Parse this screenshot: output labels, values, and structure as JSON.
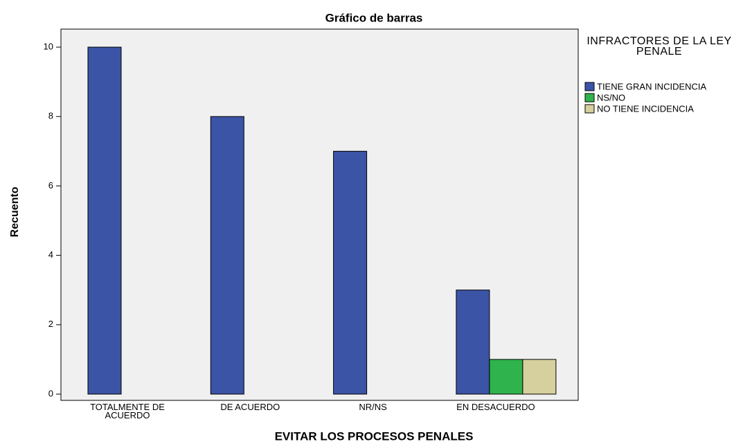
{
  "chart_data": {
    "type": "bar",
    "title": "Gráfico de barras",
    "x_label": "EVITAR LOS PROCESOS PENALES",
    "y_label": "Recuento",
    "legend_title": "INFRACTORES DE LA LEY PENALE",
    "legend_position": "right",
    "categories": [
      "TOTALMENTE DE ACUERDO",
      "DE ACUERDO",
      "NR/NS",
      "EN DESACUERDO"
    ],
    "series": [
      {
        "name": "TIENE GRAN INCIDENCIA",
        "color": "#3b54a6",
        "values": [
          10,
          8,
          7,
          3
        ]
      },
      {
        "name": "NS/NO",
        "color": "#2fb34c",
        "values": [
          null,
          null,
          null,
          1
        ]
      },
      {
        "name": "NO TIENE INCIDENCIA",
        "color": "#d6d09e",
        "values": [
          null,
          null,
          null,
          1
        ]
      }
    ],
    "ylim": [
      -0.18,
      10.52
    ],
    "yticks": [
      0,
      2,
      4,
      6,
      8,
      10
    ],
    "grid": false
  }
}
